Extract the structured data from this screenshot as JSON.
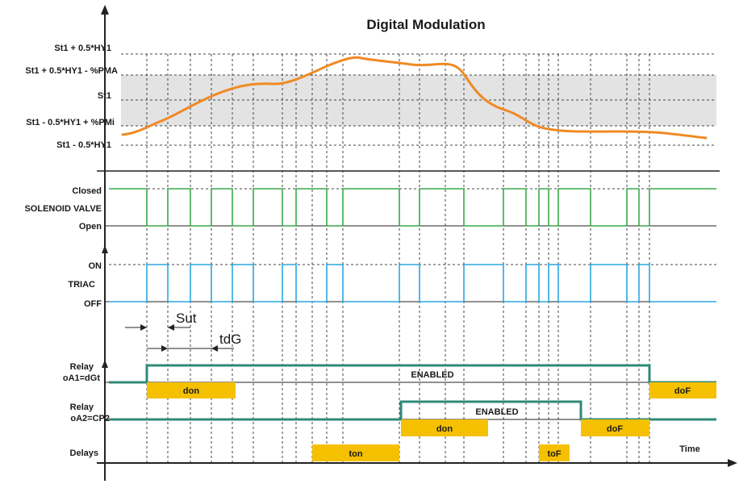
{
  "title": "Digital Modulation",
  "levels": {
    "st1_plus_half_hy1": "St1 + 0.5*HY1",
    "st1_plus_half_hy1_minus_pma": "St1 + 0.5*HY1 - %PMA",
    "st1": "St1",
    "st1_minus_half_hy1_plus_pmi": "St1 - 0.5*HY1 + %PMi",
    "st1_minus_half_hy1": "St1 - 0.5*HY1"
  },
  "solenoid": {
    "closed": "Closed",
    "name": "SOLENOID VALVE",
    "open": "Open"
  },
  "triac": {
    "on": "ON",
    "name": "TRIAC",
    "off": "OFF"
  },
  "timing": {
    "sut": "Sut",
    "tdg": "tdG"
  },
  "relay1": {
    "label_line1": "Relay",
    "label_line2": "oA1=dGt",
    "state": "ENABLED",
    "delay_on": "don",
    "delay_off": "doF"
  },
  "relay2": {
    "label_line1": "Relay",
    "label_line2": "oA2=CP2",
    "state": "ENABLED",
    "delay_on": "don",
    "delay_off": "doF"
  },
  "delays": {
    "label": "Delays",
    "ton": "ton",
    "tof": "toF"
  },
  "time_label": "Time",
  "colors": {
    "temperature": "#f08a24",
    "solenoid": "#3aa84a",
    "triac": "#2aa6e0",
    "relay": "#2f8a78",
    "delay_box": "#f5c000",
    "band": "#e3e3e3"
  }
}
